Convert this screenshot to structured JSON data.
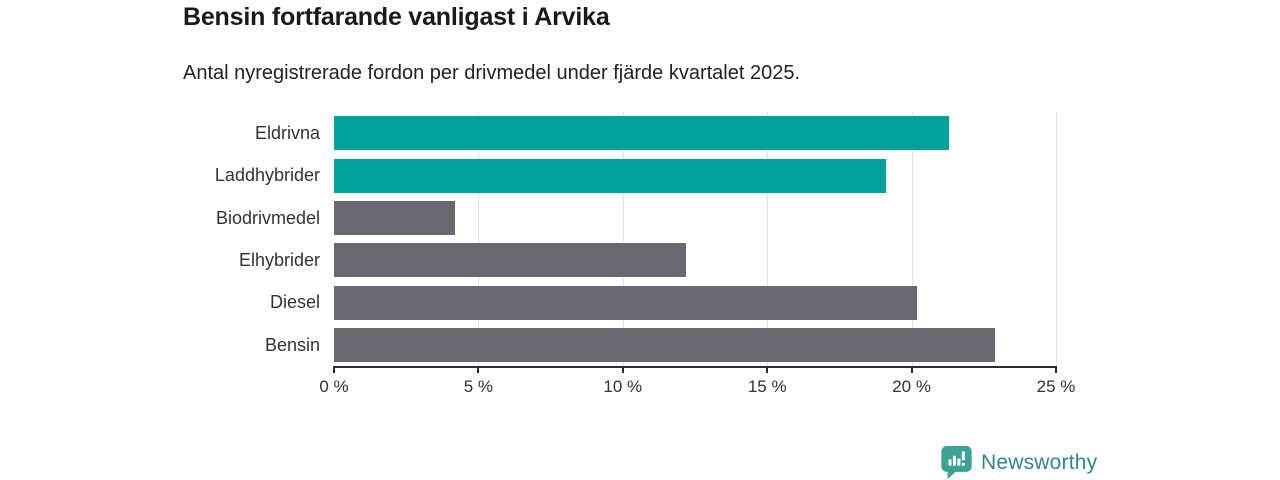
{
  "header": {
    "title": "Bensin fortfarande vanligast i Arvika",
    "subtitle": "Antal nyregistrerade fordon per drivmedel under fjärde kvartalet 2025."
  },
  "chart_data": {
    "type": "bar",
    "orientation": "horizontal",
    "title": "Bensin fortfarande vanligast i Arvika",
    "subtitle": "Antal nyregistrerade fordon per drivmedel under fjärde kvartalet 2025.",
    "categories": [
      "Eldrivna",
      "Laddhybrider",
      "Biodrivmedel",
      "Elhybrider",
      "Diesel",
      "Bensin"
    ],
    "values": [
      21.3,
      19.1,
      4.2,
      12.2,
      20.2,
      22.9
    ],
    "unit": "%",
    "xlim": [
      0,
      25
    ],
    "x_tick_values": [
      0,
      5,
      10,
      15,
      20,
      25
    ],
    "x_tick_labels": [
      "0 %",
      "5 %",
      "10 %",
      "15 %",
      "20 %",
      "25 %"
    ],
    "grid": true,
    "legend_position": "none",
    "highlight_color": "#00a39b",
    "base_color": "#6a6972",
    "bar_colors": [
      "#00a39b",
      "#00a39b",
      "#6a6972",
      "#6a6972",
      "#6a6972",
      "#6a6972"
    ]
  },
  "branding": {
    "logo_text": "Newsworthy",
    "logo_icon": "newsworthy-bar-chart-bubble-icon",
    "icon_color": "#3ca294",
    "text_color": "#2f8789"
  },
  "colors": {
    "background": "#ffffff",
    "title": "#1a1a1a",
    "subtitle": "#222222",
    "label": "#333333",
    "gridline": "#e2e2e2",
    "axis": "#2b2b2b"
  }
}
